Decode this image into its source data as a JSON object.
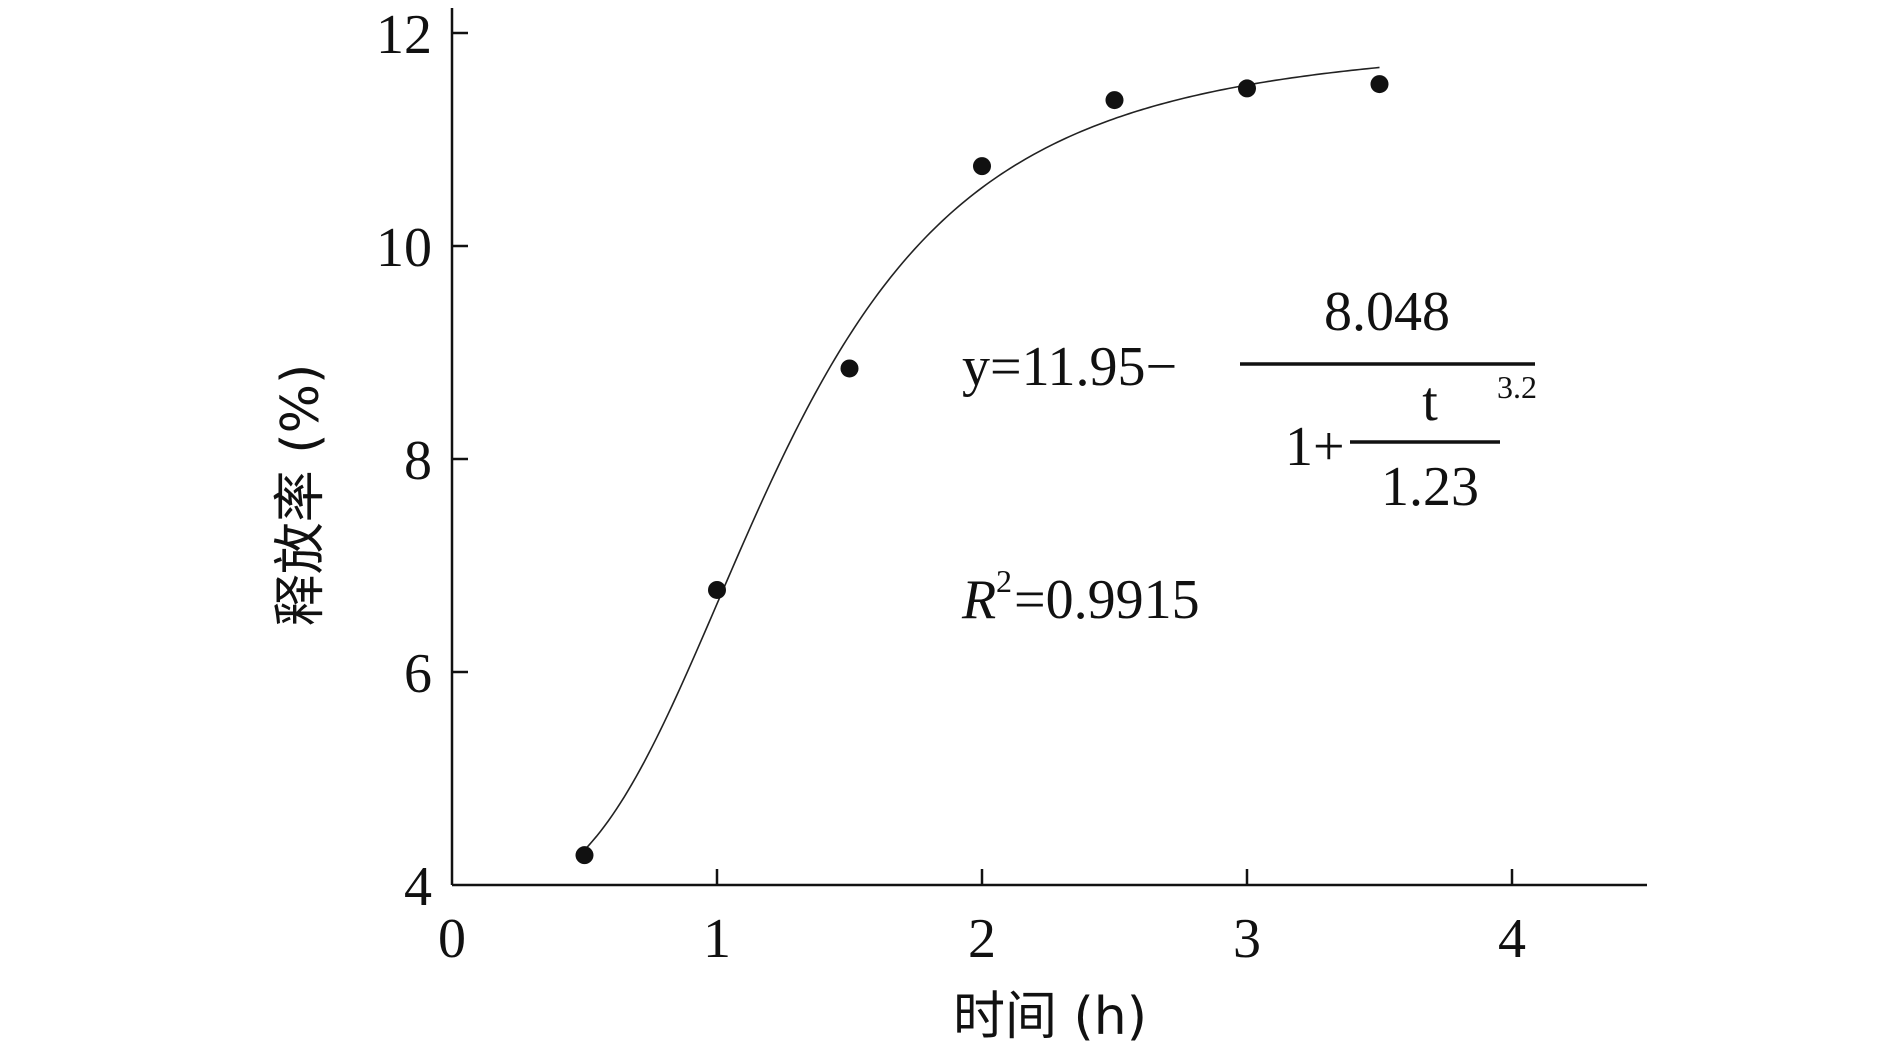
{
  "chart_data": {
    "type": "scatter",
    "xlabel": "时间 (h)",
    "ylabel": "释放率 (%)",
    "xlim": [
      0,
      4.5
    ],
    "ylim": [
      4,
      12.2
    ],
    "x_ticks": [
      "0",
      "1",
      "2",
      "3",
      "4"
    ],
    "y_ticks": [
      "4",
      "6",
      "8",
      "10",
      "12"
    ],
    "grid": false,
    "legend": "none",
    "points": [
      {
        "x": 0.5,
        "y": 4.28
      },
      {
        "x": 1.0,
        "y": 6.77
      },
      {
        "x": 1.5,
        "y": 8.85
      },
      {
        "x": 2.0,
        "y": 10.75
      },
      {
        "x": 2.5,
        "y": 11.37
      },
      {
        "x": 3.0,
        "y": 11.48
      },
      {
        "x": 3.5,
        "y": 11.52
      }
    ],
    "fit": {
      "model": "logistic",
      "a": 11.95,
      "b": 8.048,
      "c": 1.23,
      "p": 3.2,
      "x_range": [
        0.5,
        3.5
      ]
    },
    "annotations": {
      "eq_lhs": "y=11.95−",
      "eq_numerator": "8.048",
      "eq_one_plus": "1+",
      "eq_t": "t",
      "eq_c": "1.23",
      "eq_exp": "3.2",
      "r2_r": "R",
      "r2_sup": "2",
      "r2_value": "=0.9915"
    }
  }
}
